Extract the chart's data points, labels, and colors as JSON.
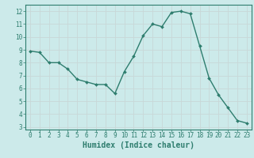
{
  "x": [
    0,
    1,
    2,
    3,
    4,
    5,
    6,
    7,
    8,
    9,
    10,
    11,
    12,
    13,
    14,
    15,
    16,
    17,
    18,
    19,
    20,
    21,
    22,
    23
  ],
  "y": [
    8.9,
    8.8,
    8.0,
    8.0,
    7.5,
    6.7,
    6.5,
    6.3,
    6.3,
    5.6,
    7.3,
    8.5,
    10.1,
    11.0,
    10.8,
    11.9,
    12.0,
    11.8,
    9.3,
    6.8,
    5.5,
    4.5,
    3.5,
    3.3
  ],
  "line_color": "#2e7d6e",
  "marker": "D",
  "marker_size": 2.0,
  "linewidth": 1.0,
  "xlabel": "Humidex (Indice chaleur)",
  "xlabel_fontsize": 7,
  "xlabel_fontweight": "bold",
  "xlabel_fontfamily": "monospace",
  "xlim": [
    -0.5,
    23.5
  ],
  "ylim": [
    2.8,
    12.5
  ],
  "yticks": [
    3,
    4,
    5,
    6,
    7,
    8,
    9,
    10,
    11,
    12
  ],
  "xticks": [
    0,
    1,
    2,
    3,
    4,
    5,
    6,
    7,
    8,
    9,
    10,
    11,
    12,
    13,
    14,
    15,
    16,
    17,
    18,
    19,
    20,
    21,
    22,
    23
  ],
  "bg_color": "#cceaea",
  "grid_color": "#c8d8d8",
  "tick_color": "#2e7d6e",
  "axis_color": "#2e7d6e",
  "tick_fontsize": 5.5,
  "tick_fontfamily": "monospace"
}
